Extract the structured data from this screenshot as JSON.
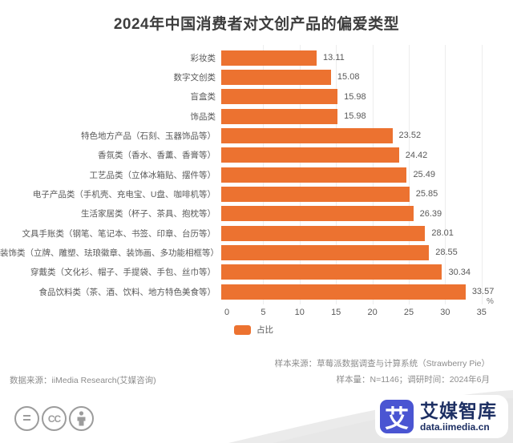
{
  "title": "2024年中国消费者对文创产品的偏爱类型",
  "colors": {
    "bar": "#EC7230",
    "text": "#595959",
    "annotation": "#8C8C8C",
    "logo_blue": "#4A55D2",
    "logo_navy": "#1D2F63"
  },
  "chart_data": {
    "type": "bar",
    "orientation": "horizontal",
    "title": "2024年中国消费者对文创产品的偏爱类型",
    "categories": [
      "彩妆类",
      "数字文创类",
      "盲盒类",
      "饰品类",
      "特色地方产品（石刻、玉器饰品等）",
      "香氛类（香水、香薰、香膏等）",
      "工艺品类（立体冰箱贴、摆件等）",
      "电子产品类（手机壳、充电宝、U盘、咖啡机等）",
      "生活家居类（杯子、茶具、抱枕等）",
      "文具手账类（钢笔、笔记本、书签、印章、台历等）",
      "装饰类（立牌、雕塑、珐琅徽章、装饰画、多功能相框等）",
      "穿戴类（文化衫、帽子、手提袋、手包、丝巾等）",
      "食品饮料类（茶、酒、饮料、地方特色美食等）"
    ],
    "values": [
      13.11,
      15.08,
      15.98,
      15.98,
      23.52,
      24.42,
      25.49,
      25.85,
      26.39,
      28.01,
      28.55,
      30.34,
      33.57
    ],
    "xlim": [
      0,
      35
    ],
    "ticks": [
      0,
      5,
      10,
      15,
      20,
      25,
      30,
      35
    ],
    "unit": "%",
    "legend": "占比",
    "legend_position": "bottom-left",
    "grid": "vertical-light",
    "value_labels": "outside-end"
  },
  "annotations": {
    "sample_source": "样本来源：草莓派数据调查与计算系统（Strawberry Pie）",
    "sample_size": "样本量：N=1146；调研时间：2024年6月",
    "data_source": "数据来源：iiMedia Research(艾媒咨询)"
  },
  "footer": {
    "license_icons": [
      "equals-icon",
      "cc-icon",
      "person-icon"
    ],
    "cc_equals_glyph": "=",
    "cc_label": "CC",
    "brand_logo_char": "艾",
    "brand_name": "艾媒智库",
    "brand_url": "data.iimedia.cn"
  }
}
